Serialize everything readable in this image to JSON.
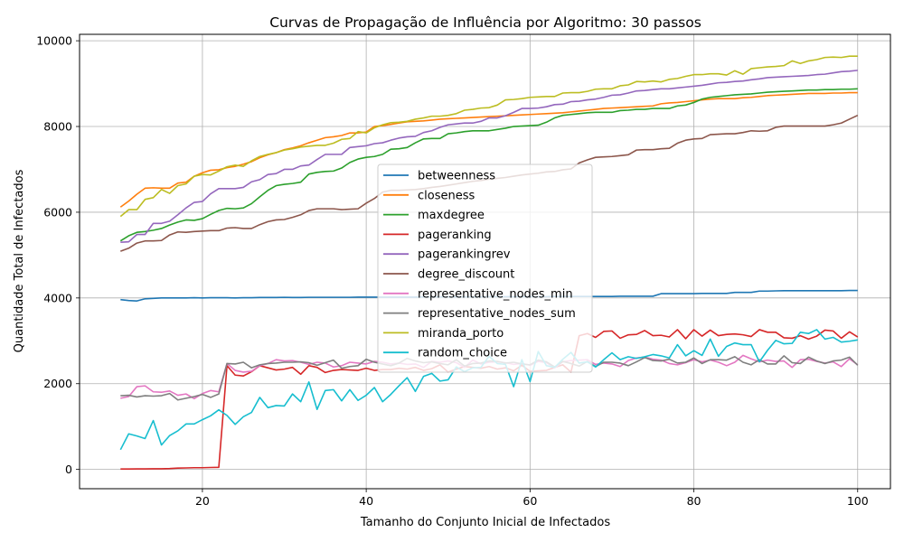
{
  "chart_data": {
    "type": "line",
    "title": "Curvas de Propagação de Influência por Algoritmo: 30 passos",
    "xlabel": "Tamanho do Conjunto Inicial de Infectados",
    "ylabel": "Quantidade Total de Infectados",
    "xlim": [
      5,
      104
    ],
    "ylim": [
      -450,
      10150
    ],
    "xticks": [
      20,
      40,
      60,
      80,
      100
    ],
    "yticks": [
      0,
      2000,
      4000,
      6000,
      8000,
      10000
    ],
    "grid": true,
    "legend_position": "center",
    "x": [
      10,
      11,
      12,
      13,
      14,
      15,
      16,
      17,
      18,
      19,
      20,
      21,
      22,
      23,
      24,
      25,
      26,
      27,
      28,
      29,
      30,
      31,
      32,
      33,
      34,
      35,
      36,
      37,
      38,
      39,
      40,
      41,
      42,
      43,
      44,
      45,
      46,
      47,
      48,
      49,
      50,
      51,
      52,
      53,
      54,
      55,
      56,
      57,
      58,
      59,
      60,
      61,
      62,
      63,
      64,
      65,
      66,
      67,
      68,
      69,
      70,
      71,
      72,
      73,
      74,
      75,
      76,
      77,
      78,
      79,
      80,
      81,
      82,
      83,
      84,
      85,
      86,
      87,
      88,
      89,
      90,
      91,
      92,
      93,
      94,
      95,
      96,
      97,
      98,
      99,
      100
    ],
    "series": [
      {
        "name": "betweenness",
        "color": "#1f77b4",
        "values": [
          3960,
          3940,
          3930,
          3980,
          3990,
          4000,
          4000,
          4000,
          4000,
          4005,
          4000,
          4005,
          4005,
          4005,
          4000,
          4005,
          4005,
          4010,
          4010,
          4010,
          4015,
          4010,
          4010,
          4015,
          4015,
          4015,
          4015,
          4015,
          4015,
          4020,
          4020,
          4020,
          4020,
          4020,
          4020,
          4020,
          4020,
          4025,
          4025,
          4025,
          4025,
          4025,
          4025,
          4025,
          4025,
          4030,
          4030,
          4030,
          4030,
          4030,
          4030,
          4030,
          4030,
          4035,
          4035,
          4035,
          4035,
          4035,
          4035,
          4035,
          4035,
          4040,
          4040,
          4040,
          4040,
          4040,
          4100,
          4100,
          4100,
          4100,
          4100,
          4105,
          4105,
          4105,
          4105,
          4130,
          4130,
          4130,
          4160,
          4160,
          4165,
          4170,
          4170,
          4170,
          4170,
          4170,
          4170,
          4170,
          4170,
          4175,
          4175
        ]
      },
      {
        "name": "closeness",
        "color": "#ff7f0e",
        "values": [
          6120,
          6260,
          6420,
          6560,
          6570,
          6560,
          6560,
          6680,
          6700,
          6840,
          6920,
          6980,
          6990,
          7040,
          7070,
          7120,
          7180,
          7270,
          7340,
          7390,
          7460,
          7500,
          7550,
          7620,
          7680,
          7740,
          7760,
          7790,
          7850,
          7850,
          7870,
          8000,
          8020,
          8050,
          8080,
          8110,
          8120,
          8130,
          8150,
          8170,
          8180,
          8190,
          8200,
          8210,
          8220,
          8230,
          8240,
          8250,
          8260,
          8270,
          8280,
          8290,
          8300,
          8310,
          8320,
          8340,
          8360,
          8380,
          8400,
          8420,
          8430,
          8440,
          8450,
          8460,
          8470,
          8480,
          8530,
          8550,
          8560,
          8580,
          8600,
          8620,
          8640,
          8650,
          8650,
          8650,
          8670,
          8680,
          8700,
          8720,
          8730,
          8740,
          8750,
          8760,
          8770,
          8770,
          8770,
          8780,
          8780,
          8790,
          8790
        ]
      },
      {
        "name": "maxdegree",
        "color": "#2ca02c",
        "values": [
          5330,
          5450,
          5530,
          5550,
          5580,
          5620,
          5700,
          5770,
          5820,
          5810,
          5850,
          5950,
          6040,
          6090,
          6080,
          6100,
          6200,
          6360,
          6510,
          6620,
          6650,
          6670,
          6700,
          6890,
          6930,
          6950,
          6960,
          7030,
          7160,
          7240,
          7280,
          7300,
          7350,
          7470,
          7480,
          7510,
          7620,
          7710,
          7720,
          7720,
          7830,
          7850,
          7880,
          7900,
          7900,
          7900,
          7930,
          7960,
          8000,
          8010,
          8020,
          8030,
          8100,
          8200,
          8260,
          8280,
          8300,
          8320,
          8330,
          8330,
          8330,
          8370,
          8380,
          8400,
          8400,
          8420,
          8420,
          8420,
          8480,
          8500,
          8560,
          8640,
          8680,
          8700,
          8720,
          8740,
          8750,
          8760,
          8780,
          8800,
          8810,
          8820,
          8830,
          8840,
          8850,
          8850,
          8860,
          8860,
          8870,
          8870,
          8880
        ]
      },
      {
        "name": "pageranking",
        "color": "#d62728",
        "values": [
          10,
          10,
          12,
          12,
          15,
          15,
          20,
          30,
          35,
          40,
          40,
          45,
          50,
          2420,
          2200,
          2180,
          2280,
          2420,
          2370,
          2320,
          2340,
          2380,
          2220,
          2420,
          2380,
          2260,
          2310,
          2330,
          2320,
          2310,
          2360,
          2310,
          2330,
          2330,
          2360,
          2340,
          2380,
          2310,
          2350,
          2440,
          2270,
          2340,
          2400,
          2380,
          2360,
          2400,
          2340,
          2370,
          2300,
          2430,
          2290,
          2300,
          2310,
          2380,
          2440,
          2270,
          3120,
          3170,
          3080,
          3220,
          3230,
          3060,
          3140,
          3150,
          3240,
          3120,
          3130,
          3090,
          3260,
          3050,
          3260,
          3110,
          3250,
          3120,
          3150,
          3160,
          3140,
          3100,
          3260,
          3200,
          3200,
          3070,
          3060,
          3120,
          3040,
          3110,
          3250,
          3230,
          3060,
          3210,
          3090
        ]
      },
      {
        "name": "pagerankingrev",
        "color": "#9467bd",
        "values": [
          5300,
          5310,
          5480,
          5480,
          5740,
          5740,
          5790,
          5940,
          6100,
          6230,
          6250,
          6430,
          6550,
          6550,
          6550,
          6580,
          6710,
          6760,
          6880,
          6900,
          7000,
          7000,
          7080,
          7100,
          7230,
          7350,
          7350,
          7350,
          7510,
          7530,
          7550,
          7600,
          7620,
          7680,
          7730,
          7760,
          7770,
          7860,
          7900,
          7980,
          8040,
          8060,
          8080,
          8080,
          8120,
          8200,
          8200,
          8250,
          8330,
          8420,
          8420,
          8430,
          8460,
          8510,
          8520,
          8580,
          8590,
          8620,
          8640,
          8680,
          8730,
          8740,
          8780,
          8830,
          8840,
          8860,
          8880,
          8880,
          8900,
          8920,
          8940,
          8960,
          8990,
          9020,
          9030,
          9050,
          9060,
          9090,
          9110,
          9140,
          9150,
          9160,
          9170,
          9180,
          9190,
          9210,
          9220,
          9250,
          9280,
          9290,
          9310
        ]
      },
      {
        "name": "degree_discount",
        "color": "#8c564b",
        "values": [
          5090,
          5160,
          5280,
          5330,
          5330,
          5340,
          5470,
          5540,
          5530,
          5550,
          5560,
          5570,
          5570,
          5630,
          5640,
          5620,
          5620,
          5710,
          5780,
          5820,
          5830,
          5880,
          5940,
          6040,
          6080,
          6080,
          6080,
          6060,
          6070,
          6080,
          6210,
          6320,
          6470,
          6510,
          6510,
          6520,
          6530,
          6550,
          6580,
          6600,
          6630,
          6660,
          6690,
          6720,
          6740,
          6770,
          6790,
          6810,
          6840,
          6870,
          6890,
          6910,
          6940,
          6950,
          6990,
          7010,
          7150,
          7220,
          7280,
          7290,
          7300,
          7320,
          7340,
          7450,
          7460,
          7460,
          7480,
          7490,
          7610,
          7680,
          7710,
          7720,
          7810,
          7820,
          7830,
          7830,
          7860,
          7900,
          7890,
          7900,
          7980,
          8010,
          8010,
          8010,
          8010,
          8010,
          8010,
          8040,
          8080,
          8170,
          8260
        ]
      },
      {
        "name": "representative_nodes_min",
        "color": "#e377c2",
        "values": [
          1660,
          1700,
          1930,
          1950,
          1810,
          1800,
          1830,
          1730,
          1760,
          1650,
          1770,
          1840,
          1810,
          2470,
          2310,
          2270,
          2290,
          2420,
          2470,
          2560,
          2530,
          2540,
          2500,
          2450,
          2500,
          2480,
          2390,
          2420,
          2500,
          2480,
          2460,
          2520,
          2500,
          2460,
          2480,
          2450,
          2460,
          2380,
          2520,
          2500,
          2530,
          2490,
          2380,
          2550,
          2460,
          2500,
          2510,
          2490,
          2450,
          2470,
          2430,
          2520,
          2490,
          2370,
          2510,
          2540,
          2550,
          2560,
          2450,
          2480,
          2460,
          2400,
          2540,
          2600,
          2620,
          2570,
          2550,
          2470,
          2440,
          2490,
          2560,
          2510,
          2550,
          2500,
          2420,
          2500,
          2660,
          2580,
          2510,
          2550,
          2520,
          2530,
          2380,
          2560,
          2570,
          2520,
          2480,
          2510,
          2400,
          2580,
          2440
        ]
      },
      {
        "name": "representative_nodes_sum",
        "color": "#7f7f7f",
        "values": [
          1720,
          1730,
          1690,
          1720,
          1710,
          1720,
          1770,
          1620,
          1660,
          1700,
          1750,
          1680,
          1760,
          2470,
          2460,
          2500,
          2370,
          2440,
          2470,
          2480,
          2500,
          2500,
          2510,
          2490,
          2430,
          2490,
          2550,
          2360,
          2400,
          2420,
          2570,
          2500,
          2460,
          2420,
          2480,
          2590,
          2530,
          2490,
          2510,
          2470,
          2440,
          2560,
          2410,
          2470,
          2480,
          2530,
          2520,
          2480,
          2500,
          2460,
          2440,
          2550,
          2510,
          2390,
          2520,
          2470,
          2410,
          2520,
          2400,
          2500,
          2500,
          2480,
          2420,
          2510,
          2610,
          2540,
          2530,
          2570,
          2480,
          2500,
          2600,
          2470,
          2560,
          2560,
          2550,
          2630,
          2500,
          2440,
          2560,
          2460,
          2460,
          2650,
          2490,
          2470,
          2620,
          2530,
          2470,
          2530,
          2550,
          2620,
          2430
        ]
      },
      {
        "name": "miranda_porto",
        "color": "#bcbd22",
        "values": [
          5900,
          6060,
          6060,
          6300,
          6340,
          6530,
          6440,
          6620,
          6660,
          6840,
          6880,
          6870,
          6960,
          7060,
          7100,
          7070,
          7200,
          7300,
          7350,
          7390,
          7450,
          7480,
          7520,
          7540,
          7560,
          7560,
          7610,
          7700,
          7720,
          7880,
          7850,
          7970,
          8040,
          8090,
          8100,
          8120,
          8170,
          8200,
          8240,
          8240,
          8260,
          8300,
          8380,
          8400,
          8430,
          8440,
          8500,
          8620,
          8630,
          8650,
          8680,
          8690,
          8700,
          8700,
          8780,
          8790,
          8790,
          8820,
          8870,
          8880,
          8880,
          8950,
          8970,
          9050,
          9040,
          9060,
          9040,
          9100,
          9120,
          9170,
          9210,
          9210,
          9230,
          9230,
          9200,
          9300,
          9220,
          9350,
          9370,
          9390,
          9400,
          9420,
          9530,
          9470,
          9530,
          9560,
          9610,
          9620,
          9610,
          9640,
          9640
        ]
      },
      {
        "name": "random_choice",
        "color": "#17becf",
        "values": [
          460,
          830,
          780,
          720,
          1140,
          570,
          790,
          900,
          1060,
          1060,
          1160,
          1250,
          1390,
          1260,
          1050,
          1230,
          1330,
          1680,
          1440,
          1490,
          1480,
          1760,
          1580,
          2040,
          1400,
          1840,
          1860,
          1600,
          1860,
          1610,
          1730,
          1910,
          1580,
          1750,
          1950,
          2140,
          1820,
          2170,
          2240,
          2060,
          2090,
          2390,
          2280,
          2370,
          2380,
          2640,
          2470,
          2450,
          1930,
          2560,
          2050,
          2750,
          2420,
          2380,
          2570,
          2730,
          2480,
          2510,
          2390,
          2560,
          2720,
          2560,
          2630,
          2590,
          2630,
          2680,
          2650,
          2600,
          2910,
          2650,
          2770,
          2660,
          3040,
          2640,
          2870,
          2950,
          2910,
          2910,
          2510,
          2780,
          3010,
          2930,
          2940,
          3200,
          3170,
          3260,
          3040,
          3080,
          2970,
          2990,
          3020
        ]
      }
    ]
  }
}
